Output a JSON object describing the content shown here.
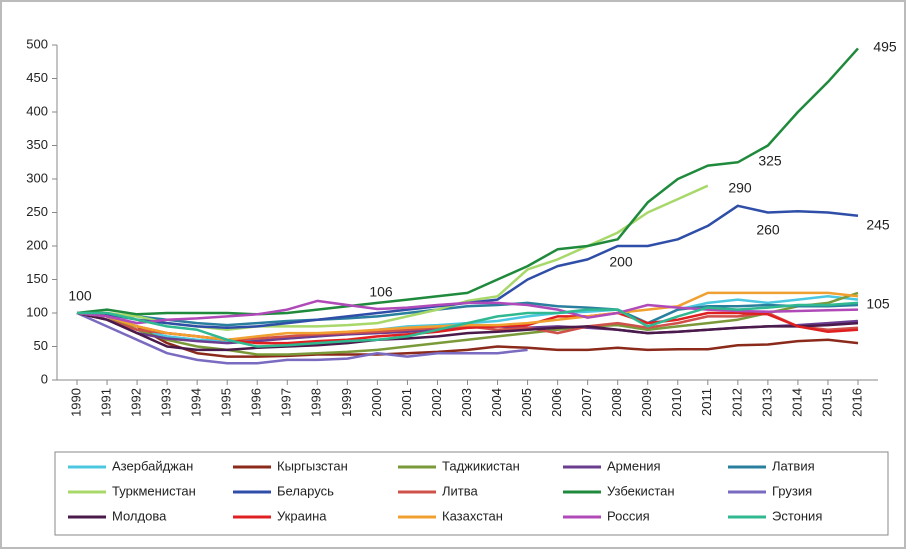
{
  "chart_data": {
    "type": "line",
    "categories": [
      "1990",
      "1991",
      "1992",
      "1993",
      "1994",
      "1995",
      "1996",
      "1997",
      "1998",
      "1999",
      "2000",
      "2001",
      "2002",
      "2003",
      "2004",
      "2005",
      "2006",
      "2007",
      "2008",
      "2009",
      "2010",
      "2011",
      "2012",
      "2013",
      "2014",
      "2015",
      "2016"
    ],
    "ylim": [
      0,
      500
    ],
    "yticks": [
      0,
      50,
      100,
      150,
      200,
      250,
      300,
      350,
      400,
      450,
      500
    ],
    "grid": false,
    "legend": "bottom",
    "series": [
      {
        "name": "Азербайджан",
        "color": "#4bc8e0",
        "values": [
          100,
          95,
          75,
          65,
          60,
          58,
          60,
          62,
          65,
          70,
          75,
          80,
          82,
          85,
          88,
          95,
          100,
          102,
          105,
          85,
          105,
          115,
          120,
          115,
          120,
          125,
          120
        ]
      },
      {
        "name": "Кыргызстан",
        "color": "#8b2a1a",
        "values": [
          100,
          95,
          80,
          55,
          40,
          35,
          35,
          36,
          38,
          38,
          38,
          40,
          42,
          45,
          50,
          48,
          45,
          45,
          48,
          45,
          46,
          46,
          52,
          53,
          58,
          60,
          55
        ]
      },
      {
        "name": "Таджикистан",
        "color": "#7a9a3a",
        "values": [
          100,
          95,
          75,
          60,
          50,
          45,
          38,
          38,
          40,
          42,
          45,
          50,
          55,
          60,
          65,
          70,
          75,
          80,
          82,
          75,
          80,
          85,
          90,
          100,
          110,
          115,
          130
        ]
      },
      {
        "name": "Армения",
        "color": "#6a3d8f",
        "values": [
          100,
          90,
          70,
          62,
          58,
          55,
          58,
          62,
          65,
          68,
          70,
          72,
          75,
          78,
          80,
          78,
          80,
          78,
          75,
          70,
          72,
          75,
          78,
          80,
          82,
          85,
          88
        ]
      },
      {
        "name": "Латвия",
        "color": "#2a7f9e",
        "values": [
          100,
          98,
          95,
          90,
          85,
          82,
          85,
          88,
          90,
          92,
          95,
          100,
          105,
          110,
          112,
          115,
          110,
          108,
          105,
          85,
          105,
          110,
          110,
          112,
          110,
          110,
          112
        ]
      },
      {
        "name": "Туркменистан",
        "color": "#a8d86a",
        "values": [
          100,
          100,
          95,
          85,
          80,
          75,
          80,
          80,
          80,
          82,
          85,
          95,
          105,
          118,
          125,
          165,
          180,
          200,
          220,
          250,
          270,
          290,
          null,
          null,
          null,
          null,
          null
        ]
      },
      {
        "name": "Беларусь",
        "color": "#2f4ea8",
        "values": [
          100,
          98,
          90,
          85,
          80,
          78,
          80,
          85,
          90,
          95,
          100,
          105,
          110,
          115,
          120,
          150,
          170,
          180,
          200,
          200,
          210,
          230,
          260,
          250,
          252,
          250,
          245
        ]
      },
      {
        "name": "Литва",
        "color": "#d0504a",
        "values": [
          100,
          90,
          75,
          70,
          65,
          60,
          62,
          65,
          68,
          70,
          72,
          75,
          78,
          80,
          75,
          78,
          70,
          80,
          85,
          78,
          85,
          95,
          95,
          100,
          80,
          75,
          78
        ]
      },
      {
        "name": "Узбекистан",
        "color": "#1f8a3c",
        "values": [
          100,
          105,
          98,
          100,
          100,
          100,
          98,
          100,
          105,
          110,
          115,
          120,
          125,
          130,
          150,
          170,
          195,
          200,
          210,
          265,
          300,
          320,
          325,
          350,
          400,
          445,
          495
        ]
      },
      {
        "name": "Грузия",
        "color": "#7a6ac0",
        "values": [
          100,
          80,
          60,
          40,
          30,
          25,
          25,
          30,
          30,
          32,
          40,
          35,
          40,
          40,
          40,
          45,
          null,
          null,
          null,
          null,
          null,
          null,
          null,
          null,
          null,
          null,
          null
        ]
      },
      {
        "name": "Молдова",
        "color": "#4a1a4a",
        "values": [
          100,
          90,
          70,
          50,
          45,
          45,
          48,
          50,
          52,
          55,
          60,
          62,
          65,
          70,
          72,
          75,
          78,
          80,
          75,
          70,
          72,
          75,
          78,
          80,
          80,
          82,
          85
        ]
      },
      {
        "name": "Украина",
        "color": "#e02020",
        "values": [
          100,
          95,
          80,
          70,
          65,
          60,
          55,
          55,
          58,
          60,
          65,
          68,
          72,
          78,
          80,
          82,
          95,
          95,
          100,
          85,
          90,
          100,
          100,
          98,
          80,
          72,
          75
        ]
      },
      {
        "name": "Казахстан",
        "color": "#f0a030",
        "values": [
          100,
          95,
          80,
          70,
          65,
          60,
          65,
          70,
          70,
          72,
          75,
          78,
          80,
          82,
          82,
          85,
          90,
          95,
          100,
          105,
          110,
          130,
          130,
          130,
          130,
          130,
          125
        ]
      },
      {
        "name": "Россия",
        "color": "#b04ab8",
        "values": [
          100,
          95,
          85,
          90,
          92,
          95,
          98,
          105,
          118,
          112,
          106,
          108,
          112,
          115,
          115,
          112,
          105,
          93,
          100,
          112,
          108,
          105,
          103,
          102,
          103,
          104,
          105
        ]
      },
      {
        "name": "Эстония",
        "color": "#30b890",
        "values": [
          100,
          100,
          90,
          80,
          75,
          60,
          50,
          52,
          55,
          58,
          60,
          65,
          75,
          85,
          95,
          100,
          100,
          105,
          105,
          80,
          95,
          108,
          105,
          108,
          112,
          112,
          115
        ]
      }
    ],
    "annotations": [
      "100",
      "106",
      "200",
      "290",
      "325",
      "260",
      "245",
      "495",
      "105"
    ]
  }
}
